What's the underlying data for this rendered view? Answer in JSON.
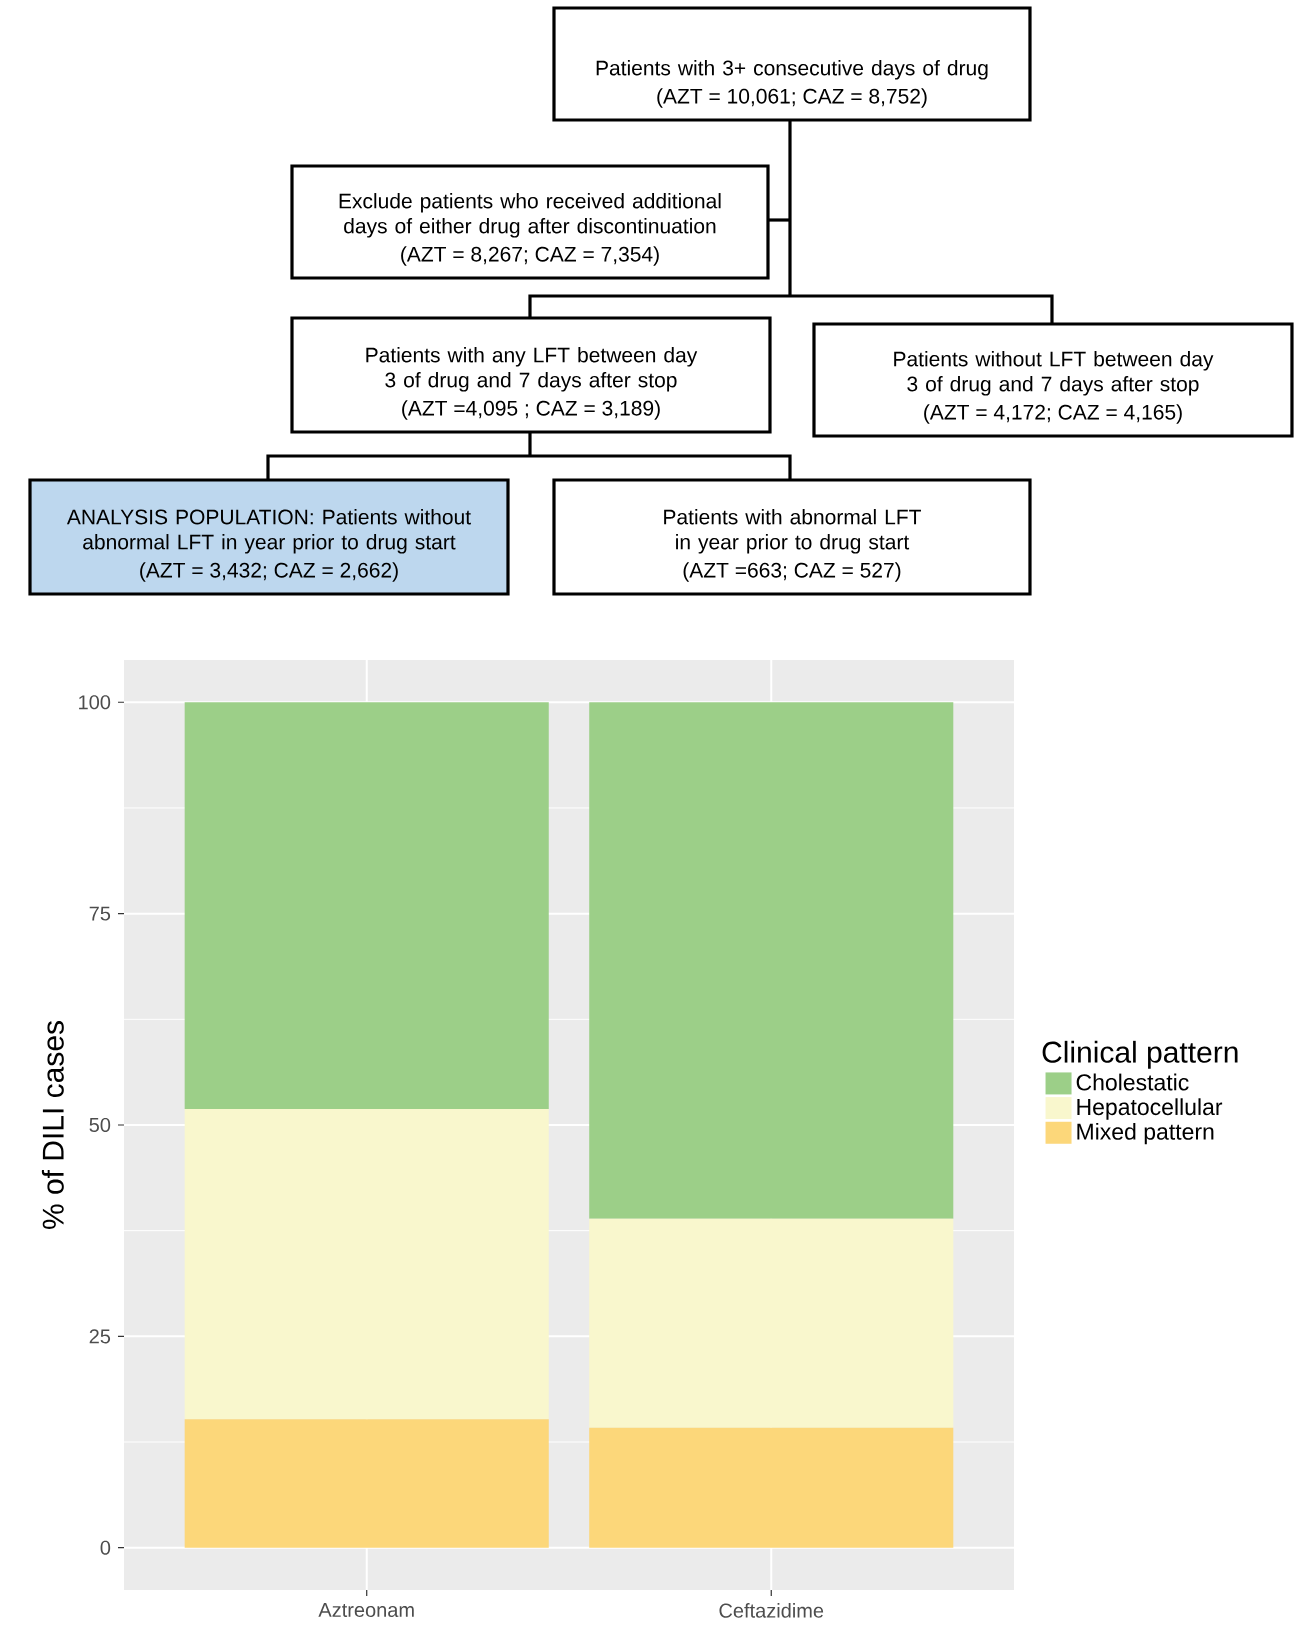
{
  "chart_data": [
    {
      "type": "other",
      "annotations": [
        "Patients with 3+ consecutive days of drug",
        "(AZT = 10,061; CAZ = 8,752)",
        "Exclude patients who received additional days of either drug after discontinuation",
        "(AZT = 8,267; CAZ = 7,354)",
        "Patients with any LFT between day 3 of drug and 7 days after stop",
        "(AZT =4,095 ; CAZ = 3,189)",
        "Patients without LFT between day 3 of drug and 7 days after stop",
        "(AZT = 4,172; CAZ = 4,165)",
        "ANALYSIS POPULATION: Patients without abnormal LFT in year prior to drug start",
        "(AZT = 3,432; CAZ = 2,662)",
        "Patients with abnormal LFT in year prior to drug start",
        "(AZT =663; CAZ = 527)"
      ]
    },
    {
      "type": "bar",
      "stacked": true,
      "ylabel": "% of DILI cases",
      "legend_title": "Clinical pattern",
      "legend": "right",
      "grid": true,
      "categories": [
        "Aztreonam",
        "Ceftazidime"
      ],
      "ylim": [
        -5,
        105
      ],
      "yticks": [
        0,
        25,
        50,
        75,
        100
      ],
      "series": [
        {
          "name": "Mixed pattern",
          "color": "#fcd77a",
          "values": [
            15.2,
            14.2
          ]
        },
        {
          "name": "Hepatocellular",
          "color": "#f9f7cd",
          "values": [
            36.7,
            24.7
          ]
        },
        {
          "name": "Cholestatic",
          "color": "#9ccf88",
          "values": [
            48.1,
            61.1
          ]
        }
      ]
    }
  ]
}
